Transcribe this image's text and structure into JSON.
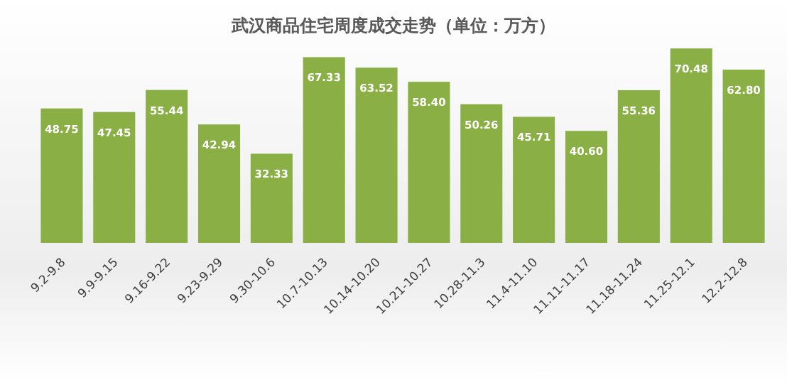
{
  "chart_data": {
    "type": "bar",
    "title": "武汉商品住宅周度成交走势（单位：万方）",
    "categories": [
      "9.2-9.8",
      "9.9-9.15",
      "9.16-9.22",
      "9.23-9.29",
      "9.30-10.6",
      "10.7-10.13",
      "10.14-10.20",
      "10.21-10.27",
      "10.28-11.3",
      "11.4-11.10",
      "11.11-11.17",
      "11.18-11.24",
      "11.25-12.1",
      "12.2-12.8"
    ],
    "values": [
      48.75,
      47.45,
      55.44,
      42.94,
      32.33,
      67.33,
      63.52,
      58.4,
      50.26,
      45.71,
      40.6,
      55.36,
      70.48,
      62.8
    ],
    "value_labels": [
      "48.75",
      "47.45",
      "55.44",
      "42.94",
      "32.33",
      "67.33",
      "63.52",
      "58.40",
      "50.26",
      "45.71",
      "40.60",
      "55.36",
      "70.48",
      "62.80"
    ],
    "color": "#8aaf45",
    "tick_labels": "x"
  }
}
